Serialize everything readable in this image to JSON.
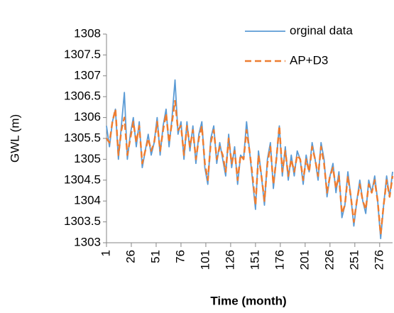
{
  "chart_data": {
    "type": "line",
    "x_label": "Time (month)",
    "y_label": "GWL (m)",
    "x": [
      1,
      4,
      7,
      10,
      13,
      16,
      19,
      22,
      25,
      28,
      31,
      34,
      37,
      40,
      43,
      46,
      49,
      52,
      55,
      58,
      61,
      64,
      67,
      70,
      73,
      76,
      79,
      82,
      85,
      88,
      91,
      94,
      97,
      100,
      103,
      106,
      109,
      112,
      115,
      118,
      121,
      124,
      127,
      130,
      133,
      136,
      139,
      142,
      145,
      148,
      151,
      154,
      157,
      160,
      163,
      166,
      169,
      172,
      175,
      178,
      181,
      184,
      187,
      190,
      193,
      196,
      199,
      202,
      205,
      208,
      211,
      214,
      217,
      220,
      223,
      226,
      229,
      232,
      235,
      238,
      241,
      244,
      247,
      250,
      253,
      256,
      259,
      262,
      265,
      268,
      271,
      274,
      277,
      280,
      283,
      286,
      289
    ],
    "series": [
      {
        "name": "orginal data",
        "color": "#5b9bd5",
        "dash": false,
        "values": [
          1305.8,
          1305.3,
          1305.9,
          1306.2,
          1305.0,
          1305.8,
          1306.6,
          1305.0,
          1305.6,
          1306.0,
          1305.3,
          1305.9,
          1304.8,
          1305.2,
          1305.6,
          1305.1,
          1305.4,
          1306.0,
          1305.1,
          1305.8,
          1306.2,
          1305.3,
          1306.0,
          1306.9,
          1305.6,
          1305.9,
          1305.0,
          1305.9,
          1305.2,
          1305.8,
          1304.9,
          1305.6,
          1305.9,
          1304.8,
          1304.4,
          1305.5,
          1305.8,
          1304.9,
          1305.4,
          1305.0,
          1304.6,
          1305.6,
          1304.8,
          1305.3,
          1304.4,
          1305.1,
          1305.0,
          1305.9,
          1305.2,
          1304.5,
          1303.8,
          1305.2,
          1304.6,
          1303.9,
          1305.0,
          1305.4,
          1304.3,
          1305.0,
          1305.8,
          1304.6,
          1305.3,
          1304.5,
          1305.1,
          1304.6,
          1305.2,
          1305.0,
          1304.4,
          1305.1,
          1304.7,
          1305.4,
          1305.0,
          1304.5,
          1305.4,
          1305.0,
          1304.1,
          1304.6,
          1304.9,
          1304.2,
          1304.7,
          1303.6,
          1303.9,
          1304.7,
          1304.1,
          1303.4,
          1304.0,
          1304.5,
          1304.0,
          1303.7,
          1304.5,
          1304.2,
          1304.6,
          1304.0,
          1303.1,
          1303.9,
          1304.6,
          1304.1,
          1304.7
        ]
      },
      {
        "name": "AP+D3",
        "color": "#ed7d31",
        "dash": true,
        "values": [
          1305.5,
          1305.4,
          1305.9,
          1306.2,
          1305.1,
          1305.7,
          1306.0,
          1305.1,
          1305.5,
          1305.9,
          1305.4,
          1305.8,
          1304.9,
          1305.2,
          1305.5,
          1305.2,
          1305.4,
          1305.9,
          1305.2,
          1305.7,
          1306.1,
          1305.4,
          1305.9,
          1306.4,
          1305.7,
          1305.8,
          1305.1,
          1305.8,
          1305.3,
          1305.7,
          1305.0,
          1305.5,
          1305.8,
          1304.9,
          1304.5,
          1305.4,
          1305.7,
          1305.0,
          1305.3,
          1305.1,
          1304.7,
          1305.5,
          1304.9,
          1305.2,
          1304.5,
          1305.1,
          1305.0,
          1305.7,
          1305.2,
          1304.6,
          1303.9,
          1305.1,
          1304.6,
          1304.0,
          1304.9,
          1305.3,
          1304.4,
          1305.0,
          1305.8,
          1304.7,
          1305.2,
          1304.6,
          1305.0,
          1304.7,
          1305.1,
          1305.0,
          1304.5,
          1305.0,
          1304.7,
          1305.3,
          1305.0,
          1304.6,
          1305.3,
          1304.9,
          1304.2,
          1304.6,
          1304.8,
          1304.3,
          1304.6,
          1303.7,
          1303.9,
          1304.6,
          1304.1,
          1303.5,
          1304.0,
          1304.4,
          1304.0,
          1303.8,
          1304.4,
          1304.2,
          1304.5,
          1304.0,
          1303.2,
          1303.9,
          1304.5,
          1304.1,
          1304.6
        ]
      }
    ],
    "xlim": [
      1,
      289
    ],
    "xticks": [
      1,
      26,
      51,
      76,
      101,
      126,
      151,
      176,
      201,
      226,
      251,
      276
    ],
    "ylim": [
      1303,
      1308
    ],
    "yticks": [
      1303,
      1303.5,
      1304,
      1304.5,
      1305,
      1305.5,
      1306,
      1306.5,
      1307,
      1307.5,
      1308
    ],
    "grid": false,
    "legend": "top-right"
  }
}
